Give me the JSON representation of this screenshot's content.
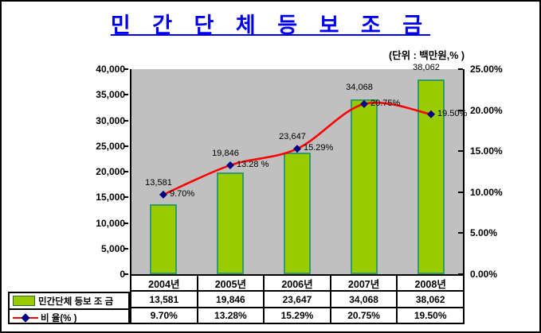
{
  "title": "민 간 단 체 등 보 조 금",
  "unit_label": "(단위 : 백만원,% )",
  "chart_data": {
    "type": "bar+line combo",
    "title": "민 간 단 체 등 보 조 금",
    "categories": [
      "2004년",
      "2005년",
      "2006년",
      "2007년",
      "2008년"
    ],
    "series": [
      {
        "name": "민간단체 등보 조 금",
        "type": "bar",
        "axis": "left",
        "values": [
          13581,
          19846,
          23647,
          34068,
          38062
        ],
        "labels": [
          "13,581",
          "19,846",
          "23,647",
          "34,068",
          "38,062"
        ],
        "fill_color": "#99CC00",
        "border_color": "#339966"
      },
      {
        "name": "비  율(% )",
        "type": "line",
        "axis": "right",
        "values": [
          9.7,
          13.28,
          15.29,
          20.75,
          19.5
        ],
        "labels": [
          "9.70%",
          "13.28 %",
          "15.29%",
          "20.75%",
          "19.50%"
        ],
        "line_color": "#FF0000",
        "marker_color": "#000080",
        "smoothed": true
      }
    ],
    "left_axis": {
      "min": 0,
      "max": 40000,
      "step": 5000,
      "tick_labels": [
        "40,000",
        "35,000",
        "30,000",
        "25,000",
        "20,000",
        "15,000",
        "10,000",
        "5,000",
        "0"
      ]
    },
    "right_axis": {
      "min": 0,
      "max": 25,
      "step": 5,
      "tick_labels": [
        "25.00%",
        "20.00%",
        "15.00%",
        "10.00%",
        "5.00%",
        "0.00%"
      ]
    },
    "plot_background": "#C0C0C0",
    "grid": "off",
    "legend_position": "bottom-left table"
  },
  "table": {
    "amount_row": [
      "13,581",
      "19,846",
      "23,647",
      "34,068",
      "38,062"
    ],
    "ratio_row": [
      "9.70%",
      "13.28%",
      "15.29%",
      "20.75%",
      "19.50%"
    ]
  },
  "colors": {
    "title": "#0000EE",
    "bar_fill": "#99CC00",
    "bar_border": "#339966",
    "line": "#FF0000",
    "marker": "#000080",
    "plot_bg": "#C0C0C0"
  }
}
